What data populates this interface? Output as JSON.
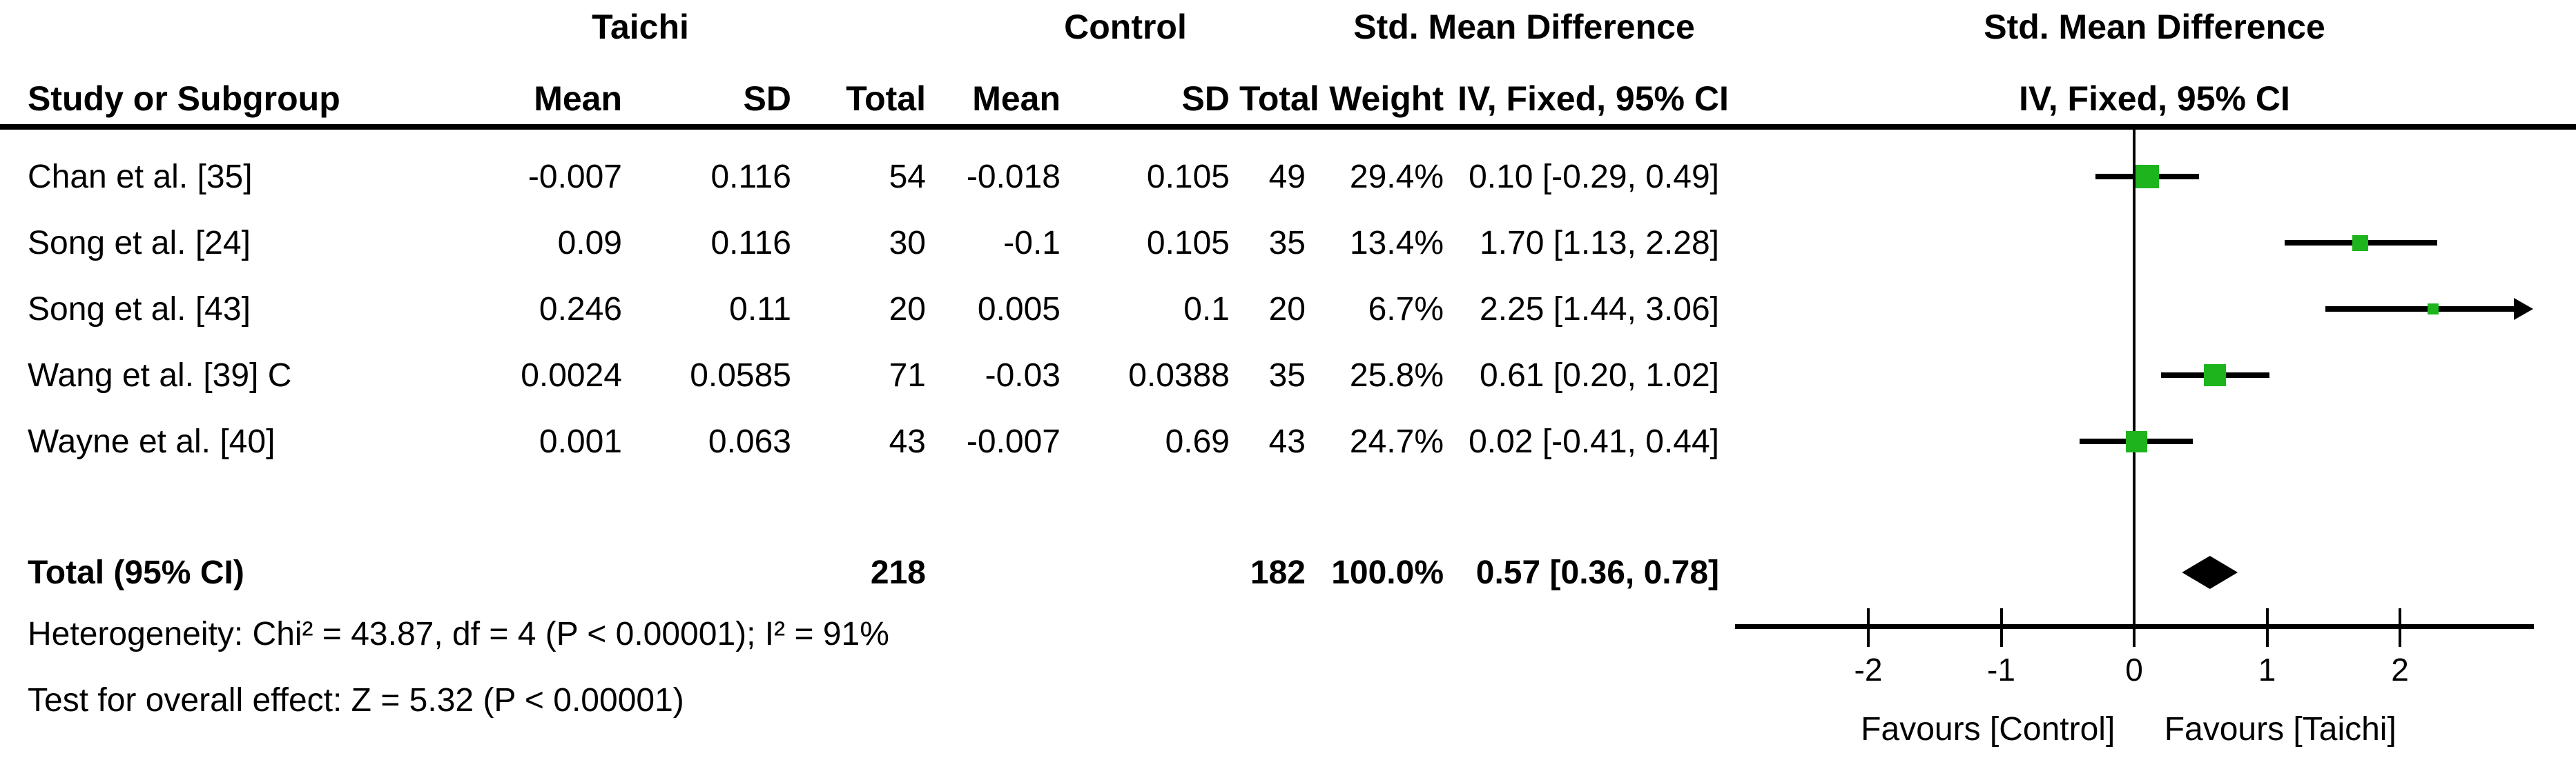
{
  "table": {
    "group_headers": {
      "taichi": "Taichi",
      "control": "Control",
      "smd_text_col": "Std. Mean Difference",
      "smd_plot_col": "Std. Mean Difference"
    },
    "col_headers": {
      "study": "Study or Subgroup",
      "mean_taichi": "Mean",
      "sd_taichi": "SD",
      "total_taichi": "Total",
      "mean_control": "Mean",
      "sd_control": "SD",
      "total_control": "Total",
      "weight": "Weight",
      "ci_text": "IV, Fixed, 95% CI",
      "ci_plot": "IV, Fixed, 95% CI"
    },
    "rows": [
      {
        "study": "Chan et al. [35]",
        "mean_t": "-0.007",
        "sd_t": "0.116",
        "total_t": "54",
        "mean_c": "-0.018",
        "sd_c": "0.105",
        "total_c": "49",
        "weight": "29.4%",
        "ci": "0.10 [-0.29, 0.49]"
      },
      {
        "study": "Song et al. [24]",
        "mean_t": "0.09",
        "sd_t": "0.116",
        "total_t": "30",
        "mean_c": "-0.1",
        "sd_c": "0.105",
        "total_c": "35",
        "weight": "13.4%",
        "ci": "1.70 [1.13, 2.28]"
      },
      {
        "study": "Song et al. [43]",
        "mean_t": "0.246",
        "sd_t": "0.11",
        "total_t": "20",
        "mean_c": "0.005",
        "sd_c": "0.1",
        "total_c": "20",
        "weight": "6.7%",
        "ci": "2.25 [1.44, 3.06]"
      },
      {
        "study": "Wang et al. [39] C",
        "mean_t": "0.0024",
        "sd_t": "0.0585",
        "total_t": "71",
        "mean_c": "-0.03",
        "sd_c": "0.0388",
        "total_c": "35",
        "weight": "25.8%",
        "ci": "0.61 [0.20, 1.02]"
      },
      {
        "study": "Wayne et al. [40]",
        "mean_t": "0.001",
        "sd_t": "0.063",
        "total_t": "43",
        "mean_c": "-0.007",
        "sd_c": "0.69",
        "total_c": "43",
        "weight": "24.7%",
        "ci": "0.02 [-0.41, 0.44]"
      }
    ],
    "total_row": {
      "label": "Total (95% CI)",
      "total_t": "218",
      "total_c": "182",
      "weight": "100.0%",
      "ci": "0.57 [0.36, 0.78]"
    },
    "footnotes": {
      "heterogeneity": "Heterogeneity: Chi² = 43.87, df = 4 (P < 0.00001); I² = 91%",
      "overall_effect": "Test for overall effect: Z = 5.32 (P < 0.00001)"
    }
  },
  "chart_data": {
    "type": "forest",
    "title": "Std. Mean Difference, IV, Fixed, 95% CI",
    "x_axis": {
      "min": -3,
      "max": 3,
      "ticks": [
        -2,
        -1,
        0,
        1,
        2
      ]
    },
    "studies": [
      {
        "name": "Chan et al. [35]",
        "est": 0.1,
        "lo": -0.29,
        "hi": 0.49,
        "weight": 29.4
      },
      {
        "name": "Song et al. [24]",
        "est": 1.7,
        "lo": 1.13,
        "hi": 2.28,
        "weight": 13.4
      },
      {
        "name": "Song et al. [43]",
        "est": 2.25,
        "lo": 1.44,
        "hi": 3.06,
        "weight": 6.7
      },
      {
        "name": "Wang et al. [39] C",
        "est": 0.61,
        "lo": 0.2,
        "hi": 1.02,
        "weight": 25.8
      },
      {
        "name": "Wayne et al. [40]",
        "est": 0.02,
        "lo": -0.41,
        "hi": 0.44,
        "weight": 24.7
      }
    ],
    "total": {
      "est": 0.57,
      "lo": 0.36,
      "hi": 0.78
    },
    "favours_left": "Favours [Control]",
    "favours_right": "Favours [Taichi]",
    "marker_color": "#1db41d",
    "line_color": "#000000"
  }
}
